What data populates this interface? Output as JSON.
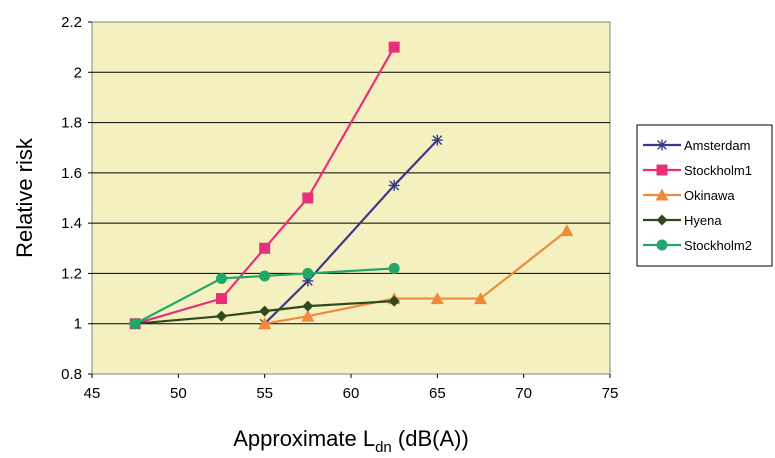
{
  "chart_data": {
    "type": "line",
    "xlabel": {
      "main": "Approximate L",
      "sub": "dn",
      "tail": " (dB(A))"
    },
    "ylabel": "Relative risk",
    "xlim": [
      45,
      75
    ],
    "ylim": [
      0.8,
      2.2
    ],
    "x_ticks": [
      "45",
      "50",
      "55",
      "60",
      "65",
      "70",
      "75"
    ],
    "y_ticks": [
      "0.8",
      "1",
      "1.2",
      "1.4",
      "1.6",
      "1.8",
      "2",
      "2.2"
    ],
    "grid": "horizontal",
    "plot_background": "#f5f0c0",
    "legend_position": "right",
    "series": [
      {
        "name": "Amsterdam",
        "color": "#3a3a8c",
        "marker": "asterisk",
        "x": [
          55,
          57.5,
          62.5,
          65
        ],
        "y": [
          1.0,
          1.17,
          1.55,
          1.73
        ]
      },
      {
        "name": "Stockholm1",
        "color": "#e8307a",
        "marker": "square",
        "x": [
          47.5,
          52.5,
          55,
          57.5,
          62.5
        ],
        "y": [
          1.0,
          1.1,
          1.3,
          1.5,
          2.1
        ]
      },
      {
        "name": "Okinawa",
        "color": "#f08a3a",
        "marker": "triangle",
        "x": [
          55,
          57.5,
          62.5,
          65,
          67.5,
          72.5
        ],
        "y": [
          1.0,
          1.03,
          1.1,
          1.1,
          1.1,
          1.37
        ]
      },
      {
        "name": "Hyena",
        "color": "#2e4a1e",
        "marker": "diamond",
        "x": [
          47.5,
          52.5,
          55,
          57.5,
          62.5
        ],
        "y": [
          1.0,
          1.03,
          1.05,
          1.07,
          1.09
        ]
      },
      {
        "name": "Stockholm2",
        "color": "#20a86a",
        "marker": "circle",
        "x": [
          47.5,
          52.5,
          55,
          57.5,
          62.5
        ],
        "y": [
          1.0,
          1.18,
          1.19,
          1.2,
          1.22
        ]
      }
    ]
  }
}
